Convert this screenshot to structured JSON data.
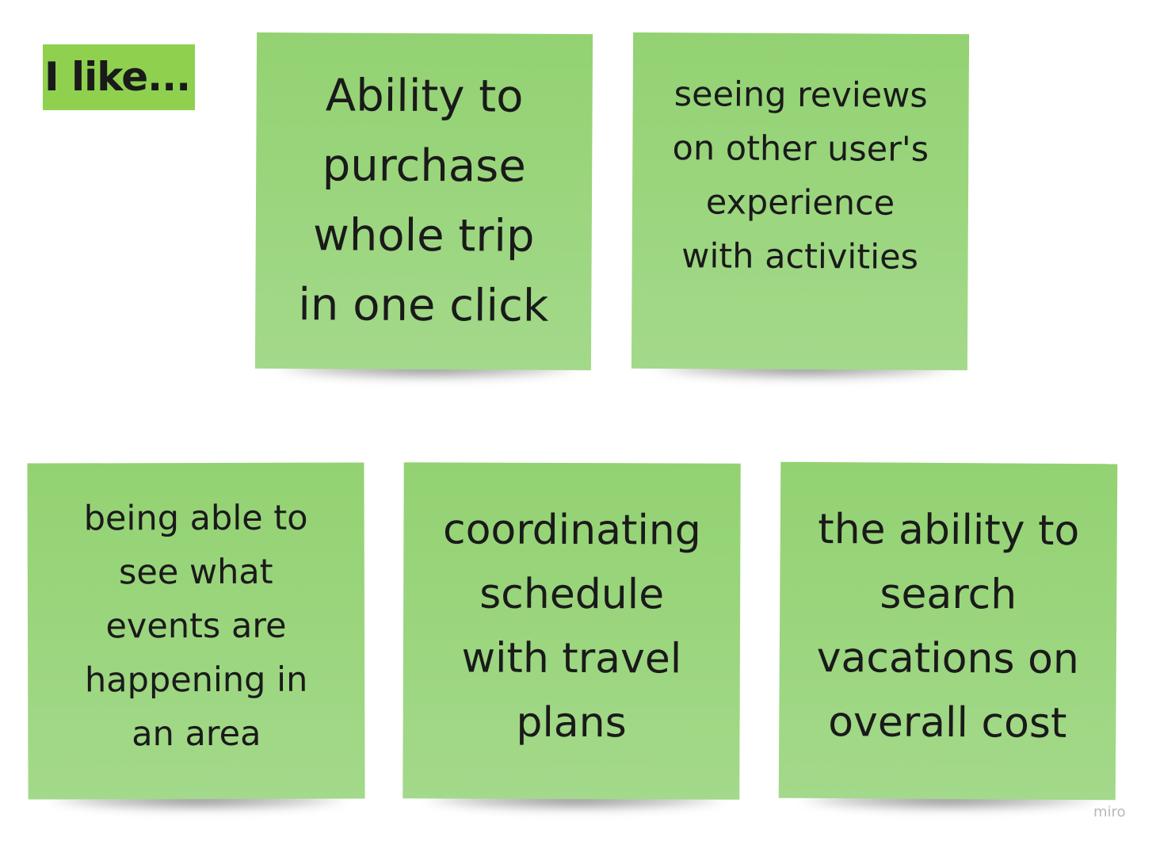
{
  "board": {
    "title": "I like...",
    "title_color": "#8fd14f",
    "sticky_color": "#9bd57f",
    "stickies": [
      {
        "text": "Ability to\npurchase\nwhole trip\nin one click"
      },
      {
        "text": "seeing reviews\non other user's\nexperience\nwith activities"
      },
      {
        "text": "being able to\nsee what\nevents are\nhappening in\nan area"
      },
      {
        "text": "coordinating\nschedule\nwith travel\nplans"
      },
      {
        "text": "the ability to\nsearch\nvacations on\noverall cost"
      }
    ],
    "watermark": "miro"
  }
}
